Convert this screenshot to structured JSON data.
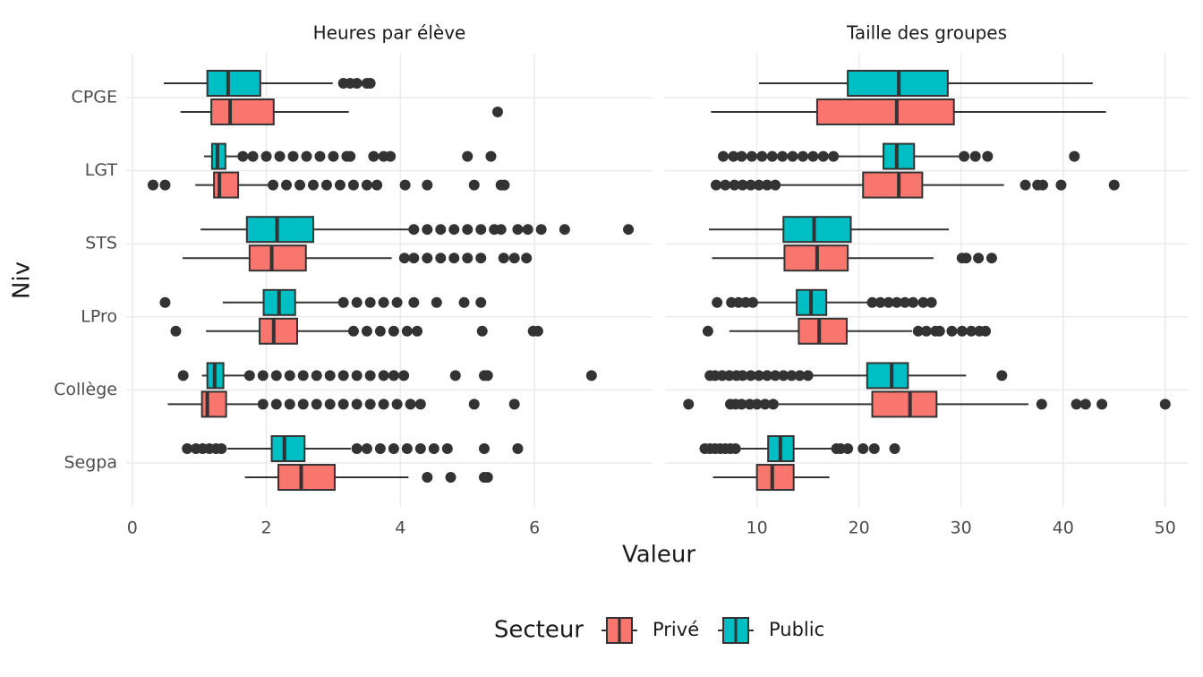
{
  "chart_data": {
    "type": "boxplot",
    "xlabel": "Valeur",
    "ylabel": "Niv",
    "legend_title": "Secteur",
    "categories": [
      "CPGE",
      "LGT",
      "STS",
      "LPro",
      "Collège",
      "Segpa"
    ],
    "series": [
      {
        "name": "Privé",
        "color": "#F8766D"
      },
      {
        "name": "Public",
        "color": "#00BFC4"
      }
    ],
    "grid": true,
    "facets": [
      {
        "title": "Heures par élève",
        "xlim": [
          -0.09,
          7.76
        ],
        "xticks": [
          0,
          2,
          4,
          6
        ],
        "boxes": [
          [
            {
              "min": 0.72,
              "q1": 1.18,
              "median": 1.46,
              "q3": 2.11,
              "max": 3.23,
              "outliers": [
                5.45
              ]
            },
            {
              "min": 0.94,
              "q1": 1.22,
              "median": 1.3,
              "q3": 1.58,
              "max": 2.03,
              "outliers": [
                0.31,
                0.49,
                2.1,
                2.3,
                2.5,
                2.7,
                2.9,
                3.1,
                3.3,
                3.5,
                3.65,
                4.07,
                4.4,
                5.1,
                5.5,
                5.55
              ]
            },
            {
              "min": 0.75,
              "q1": 1.75,
              "median": 2.08,
              "q3": 2.59,
              "max": 3.87,
              "outliers": [
                4.06,
                4.2,
                4.4,
                4.6,
                4.8,
                5.0,
                5.2,
                5.54,
                5.7,
                5.88
              ]
            },
            {
              "min": 1.1,
              "q1": 1.9,
              "median": 2.11,
              "q3": 2.46,
              "max": 3.26,
              "outliers": [
                0.65,
                3.3,
                3.5,
                3.7,
                3.9,
                4.1,
                4.25,
                5.22,
                5.98,
                6.05
              ]
            },
            {
              "min": 0.53,
              "q1": 1.04,
              "median": 1.12,
              "q3": 1.4,
              "max": 1.87,
              "outliers": [
                1.95,
                2.15,
                2.35,
                2.55,
                2.75,
                2.95,
                3.15,
                3.35,
                3.55,
                3.75,
                3.95,
                4.15,
                4.3,
                5.1,
                5.7
              ]
            },
            {
              "min": 1.68,
              "q1": 2.18,
              "median": 2.52,
              "q3": 3.02,
              "max": 4.12,
              "outliers": [
                4.4,
                4.75,
                5.25,
                5.3
              ]
            }
          ],
          [
            {
              "min": 0.47,
              "q1": 1.12,
              "median": 1.43,
              "q3": 1.91,
              "max": 2.99,
              "outliers": [
                3.15,
                3.25,
                3.35,
                3.5,
                3.55
              ]
            },
            {
              "min": 1.07,
              "q1": 1.19,
              "median": 1.27,
              "q3": 1.39,
              "max": 1.6,
              "outliers": [
                1.65,
                1.8,
                2.0,
                2.2,
                2.4,
                2.6,
                2.8,
                3.0,
                3.2,
                3.25,
                3.6,
                3.75,
                3.85,
                5.0,
                5.35
              ]
            },
            {
              "min": 1.02,
              "q1": 1.71,
              "median": 2.16,
              "q3": 2.7,
              "max": 4.13,
              "outliers": [
                4.2,
                4.4,
                4.6,
                4.8,
                5.0,
                5.2,
                5.4,
                5.5,
                5.75,
                5.9,
                6.1,
                6.45,
                7.4
              ]
            },
            {
              "min": 1.35,
              "q1": 1.96,
              "median": 2.19,
              "q3": 2.43,
              "max": 3.1,
              "outliers": [
                0.49,
                3.15,
                3.35,
                3.55,
                3.75,
                3.95,
                4.2,
                4.54,
                4.95,
                5.2
              ]
            },
            {
              "min": 1.04,
              "q1": 1.12,
              "median": 1.23,
              "q3": 1.36,
              "max": 1.68,
              "outliers": [
                0.76,
                1.75,
                1.95,
                2.15,
                2.35,
                2.55,
                2.75,
                2.95,
                3.15,
                3.35,
                3.55,
                3.75,
                3.9,
                4.05,
                4.82,
                5.25,
                5.3,
                6.85
              ]
            },
            {
              "min": 1.42,
              "q1": 2.08,
              "median": 2.27,
              "q3": 2.57,
              "max": 3.26,
              "outliers": [
                0.82,
                0.95,
                1.05,
                1.15,
                1.25,
                1.33,
                3.35,
                3.5,
                3.7,
                3.9,
                4.1,
                4.3,
                4.5,
                4.7,
                5.25,
                5.75
              ]
            }
          ]
        ]
      },
      {
        "title": "Taille des groupes",
        "xlim": [
          1.0,
          52.3
        ],
        "xticks": [
          10,
          20,
          30,
          40,
          50
        ],
        "boxes": [
          [
            {
              "min": 5.5,
              "q1": 15.9,
              "median": 23.7,
              "q3": 29.3,
              "max": 44.2
            },
            {
              "min": 12.0,
              "q1": 20.4,
              "median": 23.9,
              "q3": 26.2,
              "max": 34.2,
              "outliers": [
                6.0,
                6.9,
                7.8,
                8.6,
                9.4,
                10.2,
                11.0,
                11.8,
                36.3,
                37.5,
                38.0,
                39.8,
                45.0
              ]
            },
            {
              "min": 5.6,
              "q1": 12.7,
              "median": 15.9,
              "q3": 18.9,
              "max": 27.3,
              "outliers": [
                30.1,
                30.5,
                31.7,
                33.0
              ]
            },
            {
              "min": 7.3,
              "q1": 14.1,
              "median": 16.1,
              "q3": 18.8,
              "max": 25.2,
              "outliers": [
                5.2,
                25.8,
                26.6,
                27.5,
                27.9,
                29.1,
                30.1,
                31.0,
                31.8,
                32.4
              ]
            },
            {
              "min": 12.1,
              "q1": 21.3,
              "median": 25.0,
              "q3": 27.6,
              "max": 36.6,
              "outliers": [
                3.3,
                7.4,
                7.9,
                8.5,
                9.3,
                10.0,
                10.8,
                11.6,
                37.9,
                41.3,
                42.2,
                43.8,
                50.0
              ]
            },
            {
              "min": 5.7,
              "q1": 10.0,
              "median": 11.5,
              "q3": 13.6,
              "max": 17.1
            }
          ],
          [
            {
              "min": 10.2,
              "q1": 18.9,
              "median": 23.9,
              "q3": 28.7,
              "max": 42.9
            },
            {
              "min": 18.0,
              "q1": 22.4,
              "median": 23.7,
              "q3": 25.4,
              "max": 30.2,
              "outliers": [
                6.7,
                7.7,
                8.5,
                9.5,
                10.5,
                11.5,
                12.5,
                13.5,
                14.5,
                15.5,
                16.5,
                17.5,
                30.3,
                31.4,
                32.6,
                41.1
              ]
            },
            {
              "min": 5.3,
              "q1": 12.6,
              "median": 15.6,
              "q3": 19.2,
              "max": 28.8
            },
            {
              "min": 9.9,
              "q1": 13.9,
              "median": 15.3,
              "q3": 16.8,
              "max": 21.0,
              "outliers": [
                6.1,
                7.5,
                8.2,
                8.9,
                9.6,
                21.3,
                22.1,
                22.9,
                23.7,
                24.5,
                25.3,
                26.3,
                27.1
              ]
            },
            {
              "min": 15.3,
              "q1": 20.8,
              "median": 23.2,
              "q3": 24.8,
              "max": 30.5,
              "outliers": [
                5.4,
                5.9,
                6.6,
                7.3,
                8.0,
                8.6,
                9.4,
                10.2,
                11.0,
                11.8,
                12.6,
                13.4,
                14.2,
                15.0,
                34.0
              ]
            },
            {
              "min": 8.0,
              "q1": 11.1,
              "median": 12.3,
              "q3": 13.6,
              "max": 17.5,
              "outliers": [
                4.9,
                5.4,
                5.9,
                6.4,
                6.9,
                7.4,
                7.9,
                17.8,
                18.2,
                18.9,
                20.4,
                21.5,
                23.5
              ]
            }
          ]
        ]
      }
    ]
  }
}
